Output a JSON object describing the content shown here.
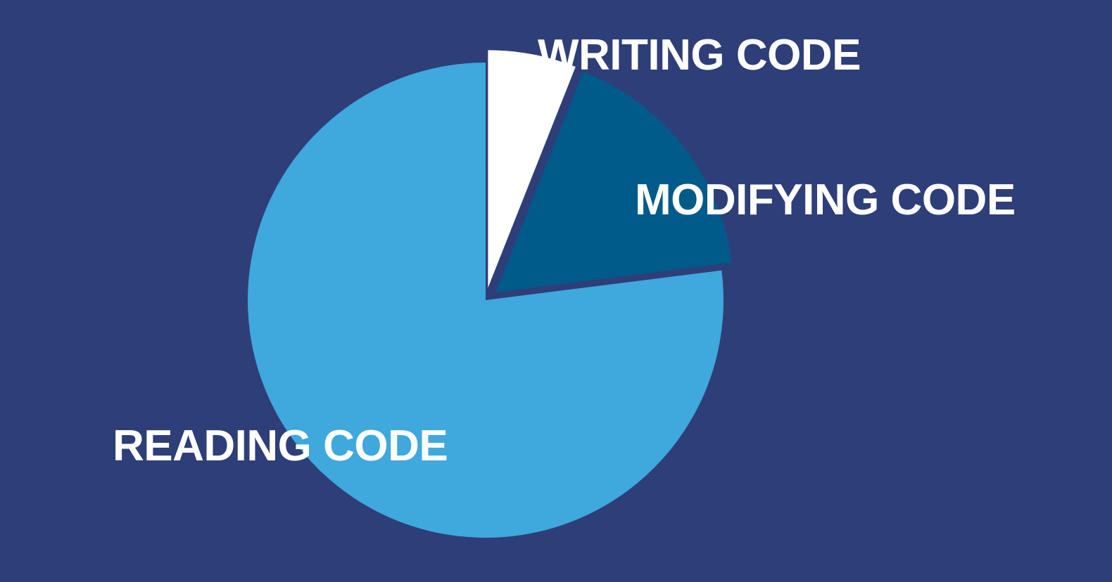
{
  "chart_data": {
    "type": "pie",
    "title": "",
    "slices": [
      {
        "label": "READING CODE",
        "value": 77,
        "color": "#3fa8dd",
        "exploded": false
      },
      {
        "label": "WRITING CODE",
        "value": 6,
        "color": "#ffffff",
        "exploded": true
      },
      {
        "label": "MODIFYING CODE",
        "value": 17,
        "color": "#005a8a",
        "exploded": true
      }
    ],
    "legend": "none"
  },
  "colors": {
    "background": "#2e3e78"
  }
}
